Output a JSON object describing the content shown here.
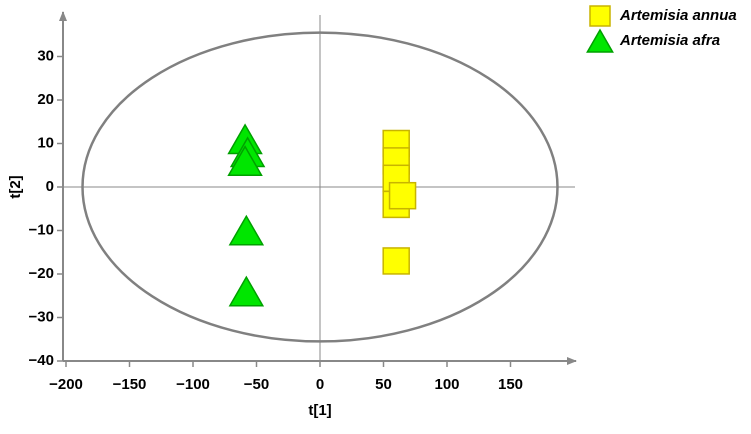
{
  "chart_data": {
    "type": "scatter",
    "xlabel": "t[1]",
    "ylabel": "t[2]",
    "xlim": [
      -200,
      200
    ],
    "ylim": [
      -40,
      40
    ],
    "xticks": [
      {
        "value": -200,
        "label": "−200"
      },
      {
        "value": -150,
        "label": "−150"
      },
      {
        "value": -100,
        "label": "−100"
      },
      {
        "value": -50,
        "label": "−50"
      },
      0,
      50,
      100,
      150
    ],
    "yticks": [
      {
        "value": -40,
        "label": "−40"
      },
      {
        "value": -30,
        "label": "−30"
      },
      {
        "value": -20,
        "label": "−20"
      },
      {
        "value": -10,
        "label": "−10"
      },
      0,
      10,
      20,
      30
    ],
    "ellipse_radii": [
      187,
      35.5
    ],
    "series": [
      {
        "name": "Artemisia annua",
        "color": "#ffff00",
        "marker": "square",
        "x": [
          60,
          60,
          60,
          60,
          65,
          60
        ],
        "values": [
          10,
          6,
          2,
          -4,
          -2,
          -17
        ]
      },
      {
        "name": "Artemisia afra",
        "color": "#00e600",
        "marker": "triangle",
        "x": [
          -59,
          -57,
          -59,
          -58,
          -58
        ],
        "values": [
          11,
          8,
          6,
          -10,
          -24
        ]
      }
    ]
  }
}
